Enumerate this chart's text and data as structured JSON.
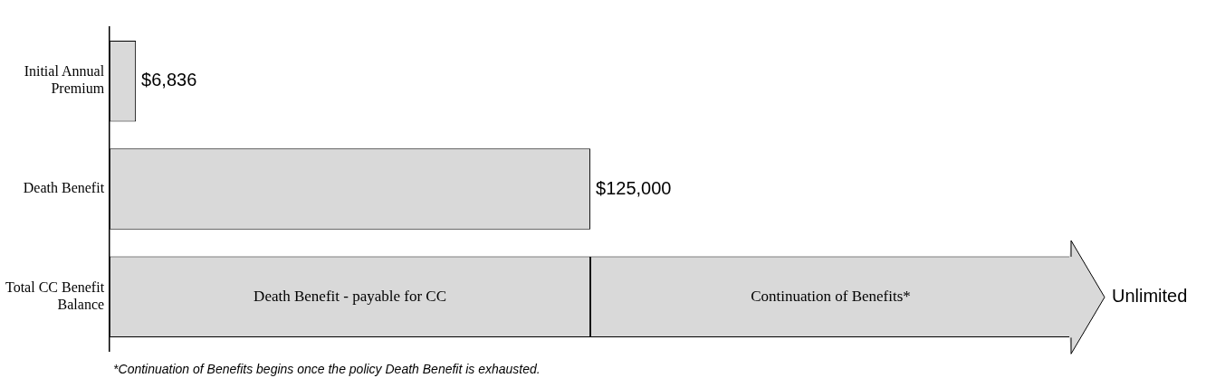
{
  "chart_data": {
    "type": "bar",
    "orientation": "horizontal",
    "stacked": true,
    "categories": [
      "Initial Annual Premium",
      "Death Benefit",
      "Total CC Benefit Balance"
    ],
    "series": [
      {
        "color": "#d9d9d9",
        "values": [
          6836,
          125000,
          125000
        ],
        "value_labels": [
          "$6,836",
          "$125,000",
          null
        ]
      },
      {
        "color": "#d9d9d9",
        "values": [
          null,
          null,
          125000
        ],
        "value_labels": [
          null,
          null,
          "Unlimited"
        ]
      }
    ],
    "tick_labels": "y",
    "grid": false,
    "legend": false,
    "annotations": [
      "Death Benefit - payable for CC",
      "Continuation of Benefits*",
      "*Continuation of Benefits begins once the policy Death Benefit is exhausted."
    ]
  }
}
